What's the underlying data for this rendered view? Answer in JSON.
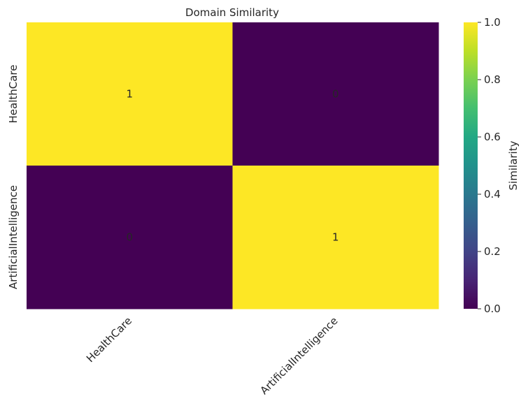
{
  "chart_data": {
    "type": "heatmap",
    "title": "Domain Similarity",
    "x_categories": [
      "HealthCare",
      "ArtificialIntelligence"
    ],
    "y_categories": [
      "HealthCare",
      "ArtificialIntelligence"
    ],
    "values": [
      [
        1,
        0
      ],
      [
        0,
        1
      ]
    ],
    "annotations": [
      "1",
      "0",
      "0",
      "1"
    ],
    "colormap": "viridis",
    "vmin": 0,
    "vmax": 1,
    "colorbar": {
      "label": "Similarity",
      "ticks": [
        0.0,
        0.2,
        0.4,
        0.6,
        0.8,
        1.0
      ],
      "tick_labels": [
        "0.0",
        "0.2",
        "0.4",
        "0.6",
        "0.8",
        "1.0"
      ]
    },
    "colors": {
      "low": "#440154",
      "high": "#fde725"
    }
  }
}
